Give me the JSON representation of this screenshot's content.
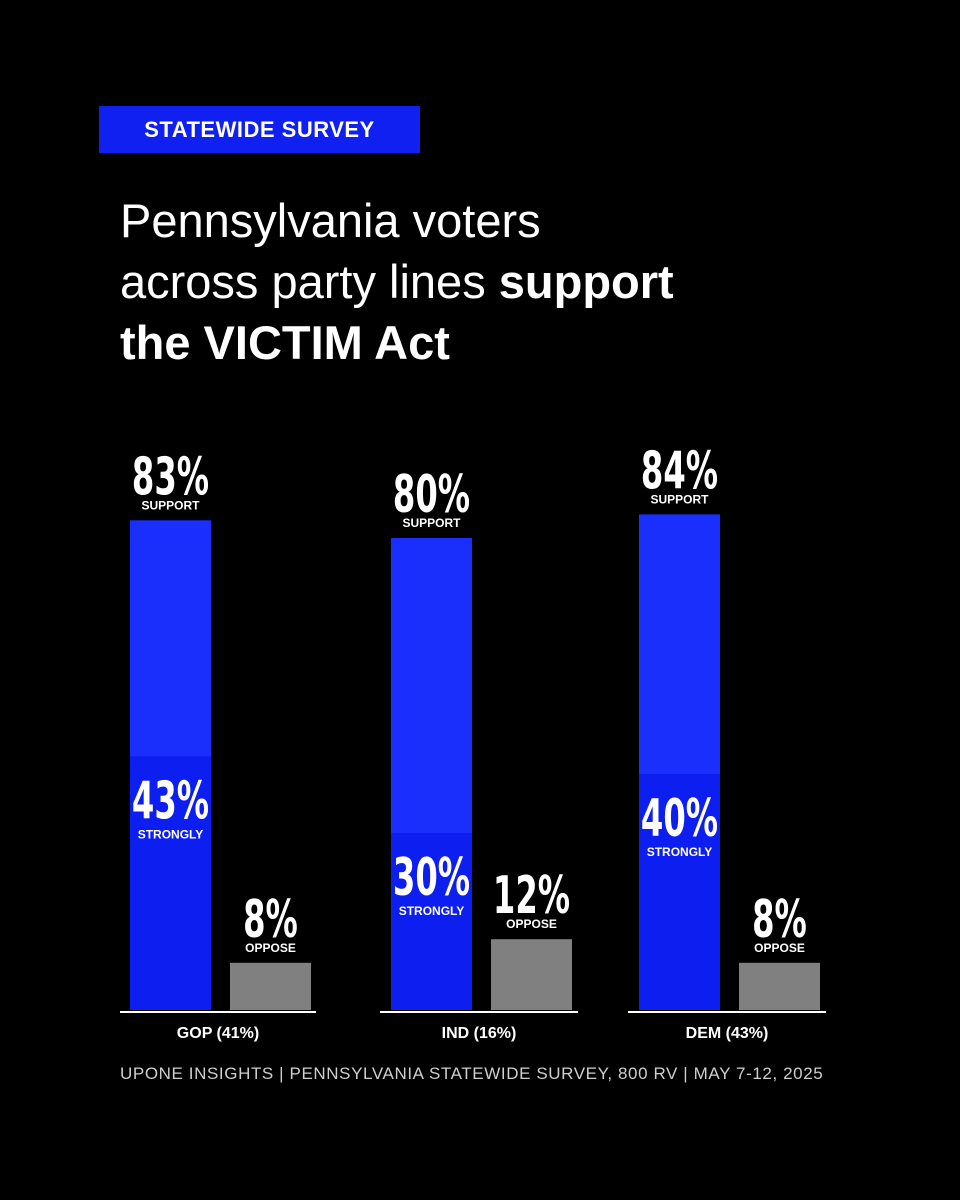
{
  "badge": "STATEWIDE SURVEY",
  "headline": {
    "line1": "Pennsylvania voters",
    "line2_regular": "across party lines ",
    "line2_bold": "support",
    "line3_bold": "the VICTIM Act"
  },
  "colors": {
    "background": "#000000",
    "support_bar": "#1a2efc",
    "strongly_bar": "#0d1ef0",
    "oppose_bar": "#808080",
    "text": "#ffffff"
  },
  "chart_data": {
    "type": "bar",
    "title": "",
    "categories": [
      "GOP (41%)",
      "IND (16%)",
      "DEM (43%)"
    ],
    "series": [
      {
        "name": "SUPPORT",
        "values": [
          83,
          80,
          84
        ],
        "labels": [
          "83%",
          "80%",
          "84%"
        ]
      },
      {
        "name": "STRONGLY",
        "values": [
          43,
          30,
          40
        ],
        "labels": [
          "43%",
          "30%",
          "40%"
        ]
      },
      {
        "name": "OPPOSE",
        "values": [
          8,
          12,
          8
        ],
        "labels": [
          "8%",
          "12%",
          "8%"
        ]
      }
    ],
    "ylim": [
      0,
      100
    ],
    "grid": false
  },
  "source": "UPONE INSIGHTS | PENNSYLVANIA STATEWIDE SURVEY, 800 RV | MAY 7-12, 2025"
}
